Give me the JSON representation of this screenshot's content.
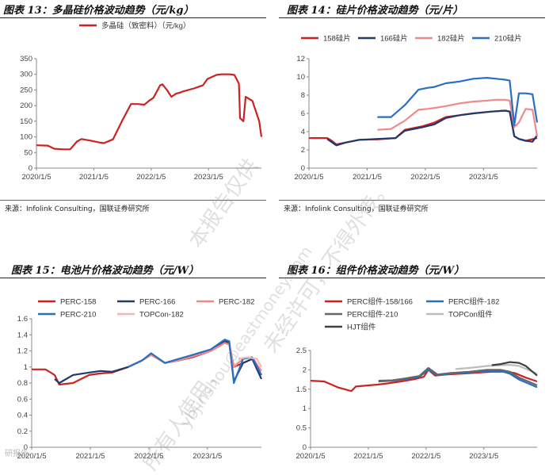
{
  "panels": [
    {
      "title": "图表 13：多晶硅价格波动趋势（元/kg）",
      "source": "来源：Infolink Consulting，国联证券研究所"
    },
    {
      "title": "图表 14：硅片价格波动趋势（元/片）",
      "source": "来源：Infolink Consulting，国联证券研究所"
    },
    {
      "title": "图表 15：电池片价格波动趋势（元/W）",
      "source": ""
    },
    {
      "title": "图表 16：组件价格波动趋势（元/W）",
      "source": ""
    }
  ],
  "watermark": {
    "line1": "本报告仅供",
    "line2": "ybjinshou@eastmoney.com",
    "line3": "未经许可，不得外传。",
    "line4": "所有人使用，",
    "line5": "研报告"
  },
  "chart_data": [
    {
      "type": "line",
      "ylim": [
        0,
        350
      ],
      "yticks": [
        0,
        50,
        100,
        150,
        200,
        250,
        300,
        350
      ],
      "xticks": [
        "2020/1/5",
        "2021/1/5",
        "2022/1/5",
        "2023/1/5"
      ],
      "series": [
        {
          "name": "多晶硅（致密料）（元/kg）",
          "color": "#cc2222",
          "t": [
            0,
            0.05,
            0.08,
            0.12,
            0.15,
            0.18,
            0.2,
            0.24,
            0.28,
            0.3,
            0.34,
            0.38,
            0.42,
            0.45,
            0.48,
            0.5,
            0.52,
            0.55,
            0.56,
            0.58,
            0.6,
            0.62,
            0.64,
            0.65,
            0.7,
            0.74,
            0.76,
            0.8,
            0.82,
            0.86,
            0.88,
            0.9,
            0.905,
            0.92,
            0.93,
            0.96,
            0.99,
            1.0
          ],
          "y": [
            73,
            72,
            62,
            60,
            60,
            85,
            93,
            88,
            82,
            80,
            92,
            150,
            205,
            205,
            203,
            215,
            225,
            265,
            268,
            250,
            228,
            238,
            242,
            245,
            255,
            265,
            285,
            298,
            300,
            300,
            298,
            270,
            160,
            150,
            228,
            215,
            150,
            100
          ]
        }
      ]
    },
    {
      "type": "line",
      "ylim": [
        0,
        12
      ],
      "yticks": [
        0,
        2,
        4,
        6,
        8,
        10,
        12
      ],
      "xticks": [
        "2020/1/5",
        "2021/1/5",
        "2022/1/5",
        "2023/1/5"
      ],
      "series": [
        {
          "name": "158硅片",
          "color": "#cc2222",
          "t": [
            0,
            0.08,
            0.1,
            0.12,
            0.16,
            0.22,
            0.3,
            0.38,
            0.42,
            0.5,
            0.55,
            0.6,
            0.66,
            0.72,
            0.8,
            0.86,
            0.88,
            0.9,
            0.92,
            0.95,
            1.0
          ],
          "y": [
            3.3,
            3.3,
            3.0,
            2.6,
            2.8,
            3.1,
            3.15,
            3.3,
            4.2,
            4.6,
            5.0,
            5.6,
            5.8,
            6.0,
            6.2,
            6.3,
            6.2,
            3.5,
            3.2,
            3.0,
            3.3
          ]
        },
        {
          "name": "166硅片",
          "color": "#1f3a6e",
          "t": [
            0.08,
            0.12,
            0.16,
            0.22,
            0.3,
            0.38,
            0.42,
            0.5,
            0.55,
            0.6,
            0.66,
            0.72,
            0.8,
            0.86,
            0.88,
            0.9,
            0.92,
            0.95,
            0.98,
            1.0
          ],
          "y": [
            3.2,
            2.5,
            2.8,
            3.1,
            3.2,
            3.3,
            4.1,
            4.5,
            4.8,
            5.5,
            5.8,
            6.0,
            6.2,
            6.3,
            6.2,
            3.5,
            3.2,
            3.0,
            2.9,
            3.6
          ]
        },
        {
          "name": "182硅片",
          "color": "#f08a8a",
          "t": [
            0.3,
            0.36,
            0.42,
            0.48,
            0.52,
            0.55,
            0.6,
            0.66,
            0.72,
            0.78,
            0.82,
            0.86,
            0.88,
            0.9,
            0.92,
            0.95,
            0.98,
            1.0
          ],
          "y": [
            4.2,
            4.3,
            5.2,
            6.4,
            6.5,
            6.6,
            6.8,
            7.1,
            7.3,
            7.4,
            7.5,
            7.5,
            7.4,
            4.5,
            5.0,
            6.5,
            6.4,
            3.5
          ]
        },
        {
          "name": "210硅片",
          "color": "#2a6fc0",
          "t": [
            0.3,
            0.36,
            0.42,
            0.48,
            0.52,
            0.55,
            0.6,
            0.66,
            0.72,
            0.78,
            0.82,
            0.86,
            0.88,
            0.9,
            0.92,
            0.95,
            0.98,
            1.0
          ],
          "y": [
            5.6,
            5.6,
            6.9,
            8.6,
            8.8,
            8.9,
            9.3,
            9.5,
            9.8,
            9.9,
            9.8,
            9.7,
            9.6,
            4.7,
            8.2,
            8.2,
            8.1,
            5.0
          ]
        }
      ]
    },
    {
      "type": "line",
      "ylim": [
        0,
        1.6
      ],
      "yticks": [
        0,
        0.2,
        0.4,
        0.6,
        0.8,
        1,
        1.2,
        1.4,
        1.6
      ],
      "xticks": [
        "2020/1/5",
        "2021/1/5",
        "2022/1/5",
        "2023/1/5"
      ],
      "series": [
        {
          "name": "PERC-158",
          "color": "#cc2222",
          "t": [
            0,
            0.06,
            0.1,
            0.12,
            0.18,
            0.25,
            0.3,
            0.35,
            0.42,
            0.48,
            0.52,
            0.58,
            0.64,
            0.7,
            0.78,
            0.84,
            0.86,
            0.88,
            0.92,
            0.96,
            1.0
          ],
          "y": [
            0.97,
            0.97,
            0.9,
            0.78,
            0.8,
            0.9,
            0.92,
            0.93,
            1.0,
            1.08,
            1.15,
            1.05,
            1.08,
            1.12,
            1.2,
            1.3,
            1.28,
            1.0,
            1.05,
            1.1,
            0.9
          ]
        },
        {
          "name": "PERC-166",
          "color": "#1f3a6e",
          "t": [
            0.1,
            0.12,
            0.18,
            0.25,
            0.3,
            0.35,
            0.42,
            0.48,
            0.52,
            0.58,
            0.64,
            0.7,
            0.78,
            0.84,
            0.86,
            0.88,
            0.92,
            0.96,
            1.0
          ],
          "y": [
            0.85,
            0.8,
            0.9,
            0.93,
            0.95,
            0.94,
            1.0,
            1.08,
            1.16,
            1.05,
            1.08,
            1.13,
            1.2,
            1.32,
            1.3,
            0.82,
            1.05,
            1.1,
            0.85
          ]
        },
        {
          "name": "PERC-182",
          "color": "#f08a8a",
          "t": [
            0.42,
            0.48,
            0.52,
            0.58,
            0.64,
            0.7,
            0.78,
            0.84,
            0.86,
            0.88,
            0.92,
            0.96,
            1.0
          ],
          "y": [
            1.0,
            1.08,
            1.15,
            1.05,
            1.08,
            1.13,
            1.2,
            1.3,
            1.28,
            1.0,
            1.1,
            1.12,
            0.95
          ]
        },
        {
          "name": "PERC-210",
          "color": "#2a6fc0",
          "t": [
            0.42,
            0.48,
            0.52,
            0.58,
            0.64,
            0.7,
            0.78,
            0.84,
            0.86,
            0.88,
            0.92,
            0.96,
            1.0
          ],
          "y": [
            1.0,
            1.08,
            1.17,
            1.05,
            1.1,
            1.15,
            1.22,
            1.34,
            1.32,
            0.8,
            1.1,
            1.12,
            0.9
          ]
        },
        {
          "name": "TOPCon-182",
          "color": "#f7b6b6",
          "t": [
            0.9,
            0.94,
            0.98,
            1.0
          ],
          "y": [
            1.1,
            1.12,
            1.1,
            1.0
          ]
        }
      ]
    },
    {
      "type": "line",
      "ylim": [
        0,
        2.5
      ],
      "yticks": [
        0,
        0.5,
        1,
        1.5,
        2,
        2.5
      ],
      "xticks": [
        "2020/1/5",
        "2021/1/5",
        "2022/1/5",
        "2023/1/5"
      ],
      "series": [
        {
          "name": "PERC组件-158/166",
          "color": "#cc2222",
          "t": [
            0,
            0.06,
            0.12,
            0.18,
            0.2,
            0.26,
            0.3,
            0.34,
            0.4,
            0.46,
            0.5,
            0.52,
            0.55,
            0.6,
            0.66,
            0.72,
            0.8,
            0.86,
            0.9,
            0.95,
            1.0
          ],
          "y": [
            1.72,
            1.7,
            1.55,
            1.45,
            1.57,
            1.6,
            1.62,
            1.65,
            1.7,
            1.76,
            1.82,
            2.0,
            1.85,
            1.88,
            1.9,
            1.92,
            1.95,
            1.95,
            1.92,
            1.8,
            1.7
          ]
        },
        {
          "name": "PERC组件-182",
          "color": "#2a6fc0",
          "t": [
            0.3,
            0.36,
            0.42,
            0.48,
            0.52,
            0.56,
            0.62,
            0.7,
            0.78,
            0.84,
            0.88,
            0.92,
            0.96,
            1.0
          ],
          "y": [
            1.7,
            1.72,
            1.76,
            1.82,
            2.0,
            1.86,
            1.9,
            1.93,
            1.97,
            1.97,
            1.9,
            1.75,
            1.65,
            1.55
          ]
        },
        {
          "name": "PERC组件-210",
          "color": "#666666",
          "t": [
            0.3,
            0.36,
            0.42,
            0.48,
            0.52,
            0.56,
            0.62,
            0.7,
            0.78,
            0.84,
            0.88,
            0.92,
            0.96,
            1.0
          ],
          "y": [
            1.72,
            1.73,
            1.78,
            1.84,
            2.05,
            1.88,
            1.92,
            1.95,
            2.0,
            2.0,
            1.95,
            1.8,
            1.7,
            1.6
          ]
        },
        {
          "name": "TOPCon组件",
          "color": "#bdbdbd",
          "t": [
            0.64,
            0.7,
            0.78,
            0.84,
            0.88,
            0.92,
            0.96,
            1.0
          ],
          "y": [
            2.02,
            2.05,
            2.1,
            2.12,
            2.13,
            2.1,
            2.0,
            1.9
          ]
        },
        {
          "name": "HJT组件",
          "color": "#404040",
          "t": [
            0.8,
            0.84,
            0.88,
            0.92,
            0.95,
            0.97,
            1.0
          ],
          "y": [
            2.12,
            2.15,
            2.2,
            2.18,
            2.1,
            2.0,
            1.85
          ]
        }
      ]
    }
  ]
}
